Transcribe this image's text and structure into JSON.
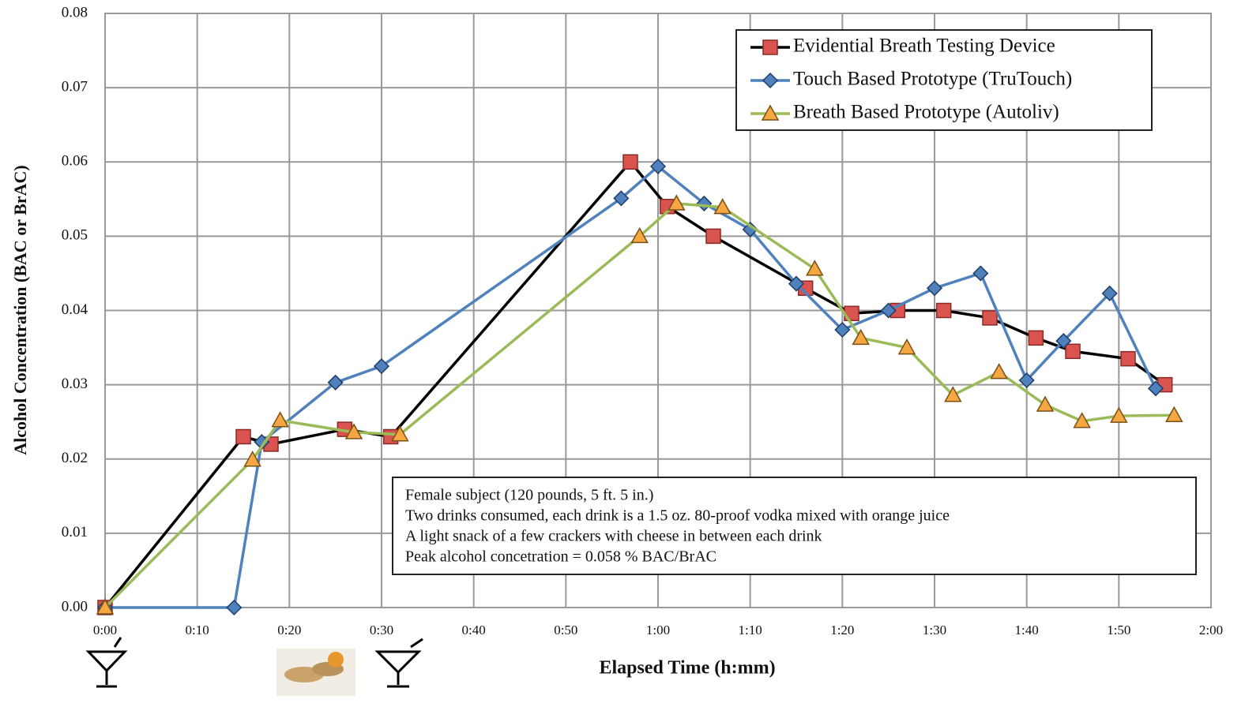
{
  "chart_data": {
    "type": "line",
    "x_label": "Elapsed Time (h:mm)",
    "y_label": "Alcohol Concentration (BAC or BrAC)",
    "xlim": [
      0,
      120
    ],
    "xticks": [
      {
        "value": 0,
        "label": "0:00"
      },
      {
        "value": 10,
        "label": "0:10"
      },
      {
        "value": 20,
        "label": "0:20"
      },
      {
        "value": 30,
        "label": "0:30"
      },
      {
        "value": 40,
        "label": "0:40"
      },
      {
        "value": 50,
        "label": "0:50"
      },
      {
        "value": 60,
        "label": "1:00"
      },
      {
        "value": 70,
        "label": "1:10"
      },
      {
        "value": 80,
        "label": "1:20"
      },
      {
        "value": 90,
        "label": "1:30"
      },
      {
        "value": 100,
        "label": "1:40"
      },
      {
        "value": 110,
        "label": "1:50"
      },
      {
        "value": 120,
        "label": "2:00"
      }
    ],
    "ylim": [
      0,
      0.08
    ],
    "yticks": [
      {
        "value": 0,
        "label": "0.00"
      },
      0.01,
      0.02,
      0.03,
      0.04,
      0.05,
      0.06,
      0.07,
      0.08
    ],
    "grid": true,
    "legend": "upper right",
    "series": [
      {
        "name": "Evidential Breath Testing Device",
        "color": "#000000",
        "marker": "square",
        "marker_color": "#d9534f",
        "x": [
          0,
          15,
          18,
          26,
          31,
          57,
          61,
          66,
          76,
          81,
          86,
          91,
          96,
          101,
          105,
          111,
          115
        ],
        "values": [
          0,
          0.023,
          0.022,
          0.024,
          0.023,
          0.06,
          0.054,
          0.05,
          0.043,
          0.0396,
          0.04,
          0.04,
          0.039,
          0.0363,
          0.0345,
          0.0335,
          0.03
        ]
      },
      {
        "name": "Touch Based Prototype (TruTouch)",
        "color": "#4f81bd",
        "marker": "diamond",
        "marker_color": "#4f81bd",
        "x": [
          0,
          14,
          17,
          25,
          30,
          56,
          60,
          65,
          70,
          75,
          80,
          85,
          90,
          95,
          100,
          104,
          109,
          114
        ],
        "values": [
          0,
          0,
          0.0223,
          0.0303,
          0.0325,
          0.0551,
          0.0594,
          0.0544,
          0.0509,
          0.0436,
          0.0374,
          0.04,
          0.043,
          0.045,
          0.0306,
          0.0359,
          0.0423,
          0.0295
        ]
      },
      {
        "name": "Breath Based Prototype (Autoliv)",
        "color": "#9bbb59",
        "marker": "triangle",
        "marker_color": "#f4a742",
        "x": [
          0,
          16,
          19,
          27,
          32,
          58,
          62,
          67,
          77,
          82,
          87,
          92,
          97,
          102,
          106,
          110,
          116
        ],
        "values": [
          0,
          0.0199,
          0.0252,
          0.0236,
          0.0233,
          0.05,
          0.0544,
          0.0539,
          0.0456,
          0.0363,
          0.035,
          0.0286,
          0.0317,
          0.0273,
          0.0251,
          0.0258,
          0.0259
        ]
      }
    ],
    "annotation": [
      "Female subject (120 pounds, 5 ft. 5 in.)",
      "Two drinks consumed, each drink is a 1.5 oz. 80-proof vodka mixed with orange juice",
      "A light snack of a few crackers with cheese in between each drink",
      "Peak alcohol concetration = 0.058 % BAC/BrAC"
    ]
  }
}
